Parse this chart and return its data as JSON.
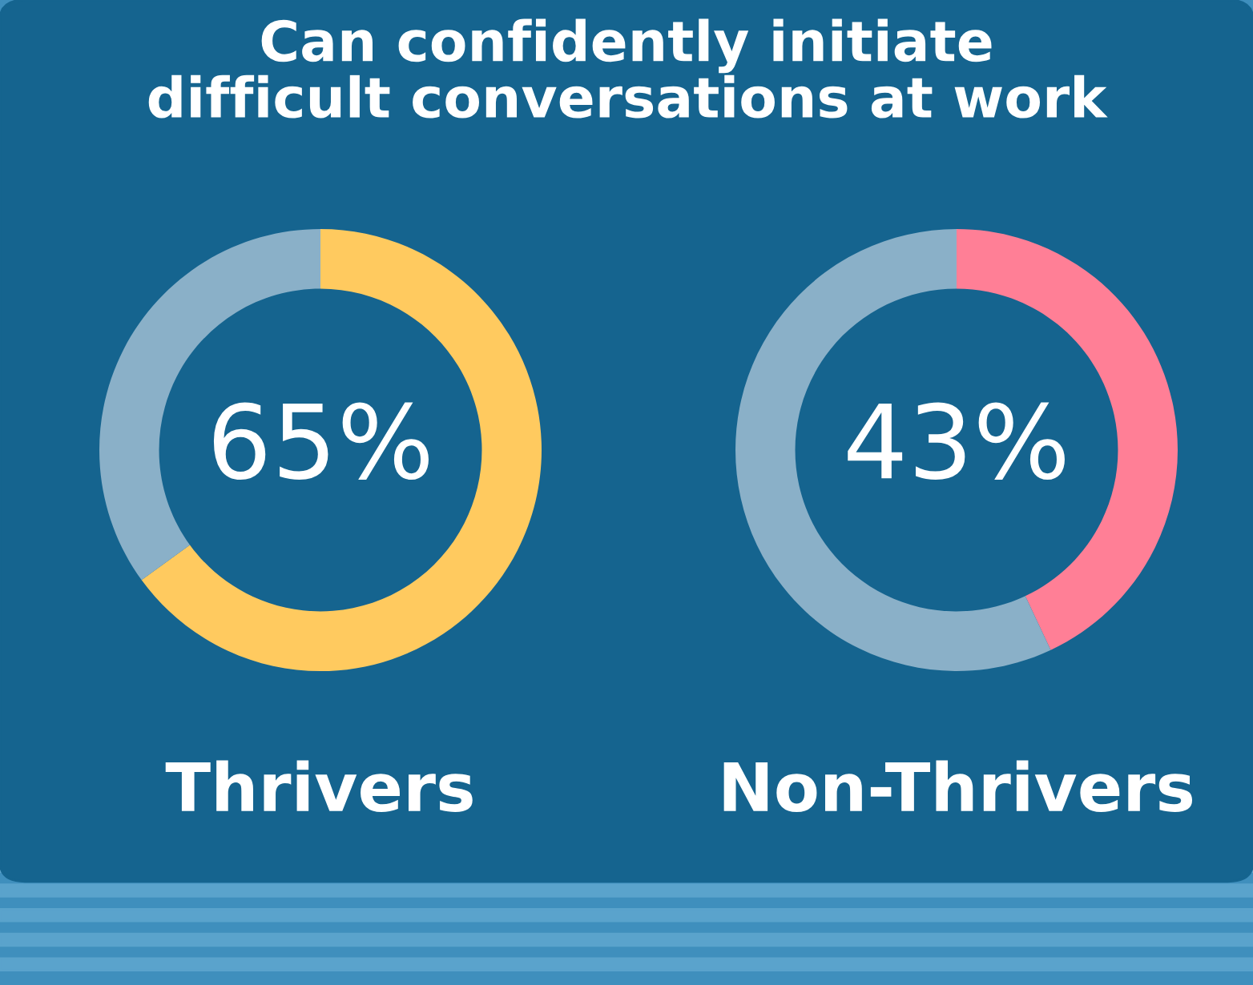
{
  "chart_data": [
    {
      "type": "donut",
      "title": "Can confidently initiate\ndifficult conversations at work",
      "xlabel": "Thrivers",
      "categories": [
        null,
        null
      ],
      "values": [
        65,
        35
      ],
      "colors": [
        "#ffca5f",
        "#8ab0c8"
      ],
      "annotations": [
        "65%"
      ]
    },
    {
      "type": "donut",
      "xlabel": "Non-Thrivers",
      "categories": [
        null,
        null
      ],
      "values": [
        43,
        57
      ],
      "colors": [
        "#ff7f96",
        "#8ab0c8"
      ],
      "annotations": [
        "43%"
      ]
    }
  ]
}
